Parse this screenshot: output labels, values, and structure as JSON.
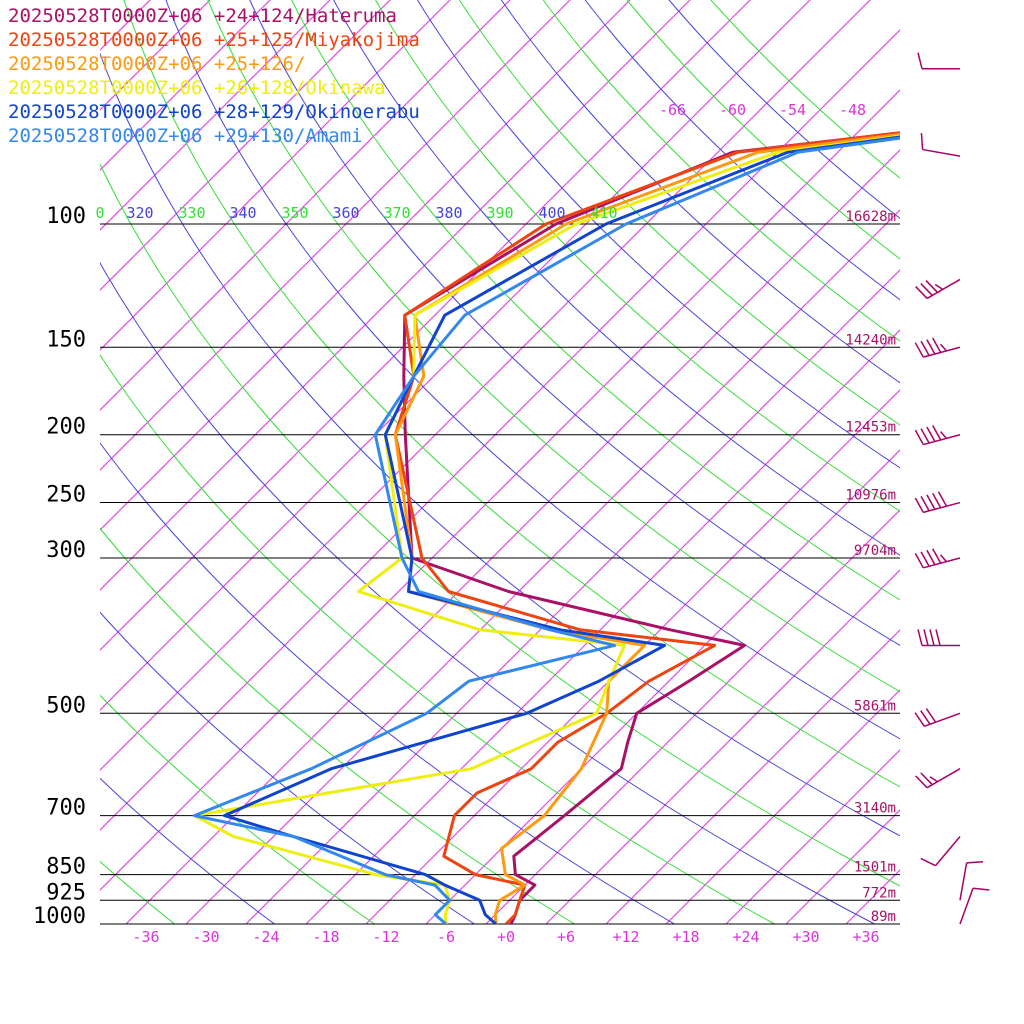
{
  "chart_data": {
    "type": "line",
    "title": "",
    "xlabel": "",
    "ylabel": "",
    "y_scale": "log-pressure",
    "pressure_levels": [
      100,
      150,
      200,
      250,
      300,
      500,
      700,
      850,
      925,
      1000
    ],
    "pressure_labels": [
      "100",
      "150",
      "200",
      "250",
      "300",
      "500",
      "700",
      "850",
      "925",
      "1000"
    ],
    "height_labels": [
      "16628m",
      "14240m",
      "12453m",
      "10976m",
      "9704m",
      "5861m",
      "3140m",
      "1501m",
      "772m",
      "89m"
    ],
    "temp_ticks": [
      -36,
      -30,
      -24,
      -18,
      -12,
      -6,
      0,
      6,
      12,
      18,
      24,
      30,
      36
    ],
    "temp_tick_labels": [
      "-36",
      "-30",
      "-24",
      "-18",
      "-12",
      "-6",
      "+0",
      "+6",
      "+12",
      "+18",
      "+24",
      "+30",
      "+36"
    ],
    "upper_isotherm_labels": [
      "-66",
      "-60",
      "-54",
      "-48"
    ],
    "theta_labels": [
      "0",
      "320",
      "330",
      "340",
      "350",
      "360",
      "370",
      "380",
      "390",
      "400",
      "410"
    ],
    "colors": {
      "isotherm": "#dd33dd",
      "theta": "#4444dd",
      "theta_e": "#33dd33",
      "isobar": "#000000",
      "height_label": "#aa1166",
      "wind_barb": "#aa0066"
    },
    "series": [
      {
        "name": "20250528T0000Z+06 +24+124/Hateruma",
        "color": "#aa1166",
        "points": [
          [
            9,
            60
          ],
          [
            -54.5,
            79
          ],
          [
            -65,
            100
          ],
          [
            -71,
            135
          ],
          [
            -65,
            165
          ],
          [
            -59,
            200
          ],
          [
            -46,
            300
          ],
          [
            -33,
            335
          ],
          [
            -13,
            380
          ],
          [
            -4,
            400
          ],
          [
            -6,
            450
          ],
          [
            -8,
            500
          ],
          [
            -6,
            550
          ],
          [
            -4,
            600
          ],
          [
            -5,
            700
          ],
          [
            -6,
            800
          ],
          [
            -4,
            850
          ],
          [
            -1,
            880
          ],
          [
            -1,
            925
          ],
          [
            0,
            970
          ],
          [
            0.5,
            1000
          ]
        ]
      },
      {
        "name": "20250528T0000Z+06 +25+125/Miyakojima",
        "color": "#ee4411",
        "points": [
          [
            7,
            60
          ],
          [
            -54,
            79
          ],
          [
            -66,
            100
          ],
          [
            -71,
            135
          ],
          [
            -64,
            165
          ],
          [
            -60,
            200
          ],
          [
            -45,
            300
          ],
          [
            -39,
            335
          ],
          [
            -22,
            380
          ],
          [
            -7,
            400
          ],
          [
            -10,
            450
          ],
          [
            -11,
            500
          ],
          [
            -13,
            550
          ],
          [
            -13,
            600
          ],
          [
            -16,
            650
          ],
          [
            -16,
            700
          ],
          [
            -13,
            800
          ],
          [
            -8,
            850
          ],
          [
            -2,
            880
          ],
          [
            -1,
            925
          ],
          [
            0,
            970
          ],
          [
            0,
            1000
          ]
        ]
      },
      {
        "name": "20250528T0000Z+06 +25+126/",
        "color": "#ff9911",
        "points": [
          [
            6,
            60
          ],
          [
            -52,
            79
          ],
          [
            -64,
            100
          ],
          [
            -70,
            135
          ],
          [
            -63,
            165
          ],
          [
            -60,
            200
          ],
          [
            -46,
            300
          ],
          [
            -43,
            335
          ],
          [
            -25,
            380
          ],
          [
            -14,
            400
          ],
          [
            -14,
            450
          ],
          [
            -11,
            500
          ],
          [
            -8,
            600
          ],
          [
            -7,
            700
          ],
          [
            -8,
            780
          ],
          [
            -5,
            850
          ],
          [
            -2,
            880
          ],
          [
            -3,
            925
          ],
          [
            -2,
            970
          ],
          [
            -1,
            1000
          ]
        ]
      },
      {
        "name": "20250528T0000Z+06 +26+128/Okinawa",
        "color": "#eeee11",
        "points": [
          [
            5,
            60
          ],
          [
            -50,
            79
          ],
          [
            -63,
            100
          ],
          [
            -70,
            135
          ],
          [
            -64,
            165
          ],
          [
            -61,
            200
          ],
          [
            -47,
            300
          ],
          [
            -48,
            335
          ],
          [
            -32,
            380
          ],
          [
            -16,
            400
          ],
          [
            -14,
            450
          ],
          [
            -12,
            500
          ],
          [
            -19,
            600
          ],
          [
            -42,
            700
          ],
          [
            -36,
            750
          ],
          [
            -18,
            850
          ],
          [
            -10,
            880
          ],
          [
            -8,
            925
          ],
          [
            -7,
            970
          ],
          [
            -6,
            1000
          ]
        ]
      },
      {
        "name": "20250528T0000Z+06 +28+129/Okinoerabu",
        "color": "#1144cc",
        "points": [
          [
            4,
            60
          ],
          [
            -49,
            79
          ],
          [
            -60,
            100
          ],
          [
            -67,
            135
          ],
          [
            -64,
            165
          ],
          [
            -61,
            200
          ],
          [
            -46,
            300
          ],
          [
            -43,
            335
          ],
          [
            -24,
            380
          ],
          [
            -12,
            400
          ],
          [
            -15,
            450
          ],
          [
            -19,
            500
          ],
          [
            -33,
            600
          ],
          [
            -39,
            700
          ],
          [
            -30,
            750
          ],
          [
            -13,
            850
          ],
          [
            -10,
            880
          ],
          [
            -5,
            925
          ],
          [
            -3,
            970
          ],
          [
            -1,
            1000
          ]
        ]
      },
      {
        "name": "20250528T0000Z+06 +29+130/Amami",
        "color": "#3388ee",
        "points": [
          [
            4,
            60
          ],
          [
            -48,
            79
          ],
          [
            -58,
            100
          ],
          [
            -65,
            135
          ],
          [
            -64,
            165
          ],
          [
            -62,
            200
          ],
          [
            -47,
            300
          ],
          [
            -42,
            335
          ],
          [
            -25,
            380
          ],
          [
            -17,
            400
          ],
          [
            -28,
            450
          ],
          [
            -29,
            500
          ],
          [
            -35,
            600
          ],
          [
            -42,
            700
          ],
          [
            -30,
            750
          ],
          [
            -17,
            850
          ],
          [
            -11,
            880
          ],
          [
            -8,
            925
          ],
          [
            -8,
            970
          ],
          [
            -6,
            1000
          ]
        ]
      }
    ],
    "wind_barbs": [
      {
        "p": 60,
        "dir": 270,
        "speed": 10
      },
      {
        "p": 80,
        "dir": 280,
        "speed": 10
      },
      {
        "p": 120,
        "dir": 240,
        "speed": 35
      },
      {
        "p": 150,
        "dir": 255,
        "speed": 45
      },
      {
        "p": 200,
        "dir": 255,
        "speed": 45
      },
      {
        "p": 250,
        "dir": 255,
        "speed": 50
      },
      {
        "p": 300,
        "dir": 255,
        "speed": 45
      },
      {
        "p": 400,
        "dir": 270,
        "speed": 40
      },
      {
        "p": 500,
        "dir": 250,
        "speed": 30
      },
      {
        "p": 600,
        "dir": 240,
        "speed": 25
      },
      {
        "p": 750,
        "dir": 220,
        "speed": 10
      },
      {
        "p": 925,
        "dir": 10,
        "speed": 10
      },
      {
        "p": 1000,
        "dir": 20,
        "speed": 10
      }
    ]
  }
}
